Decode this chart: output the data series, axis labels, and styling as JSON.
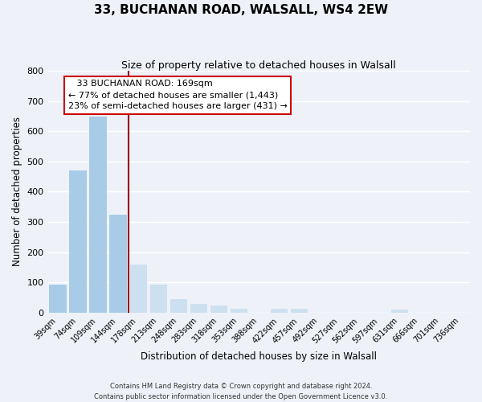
{
  "title1": "33, BUCHANAN ROAD, WALSALL, WS4 2EW",
  "title2": "Size of property relative to detached houses in Walsall",
  "xlabel": "Distribution of detached houses by size in Walsall",
  "ylabel": "Number of detached properties",
  "bar_labels": [
    "39sqm",
    "74sqm",
    "109sqm",
    "144sqm",
    "178sqm",
    "213sqm",
    "248sqm",
    "283sqm",
    "318sqm",
    "353sqm",
    "388sqm",
    "422sqm",
    "457sqm",
    "492sqm",
    "527sqm",
    "562sqm",
    "597sqm",
    "631sqm",
    "666sqm",
    "701sqm",
    "736sqm"
  ],
  "bar_values": [
    93,
    470,
    648,
    325,
    160,
    92,
    44,
    28,
    24,
    14,
    0,
    14,
    13,
    0,
    0,
    0,
    0,
    10,
    0,
    0,
    0
  ],
  "bar_color_left": "#a8cce8",
  "bar_color_right": "#cce0f0",
  "vline_index": 4,
  "vline_color": "#990000",
  "ylim": [
    0,
    800
  ],
  "yticks": [
    0,
    100,
    200,
    300,
    400,
    500,
    600,
    700,
    800
  ],
  "annotation_title": "33 BUCHANAN ROAD: 169sqm",
  "annotation_line1": "← 77% of detached houses are smaller (1,443)",
  "annotation_line2": "23% of semi-detached houses are larger (431) →",
  "annotation_box_facecolor": "#ffffff",
  "annotation_box_edgecolor": "#cc0000",
  "footer1": "Contains HM Land Registry data © Crown copyright and database right 2024.",
  "footer2": "Contains public sector information licensed under the Open Government Licence v3.0.",
  "background_color": "#eef2f8",
  "grid_color": "#ffffff"
}
